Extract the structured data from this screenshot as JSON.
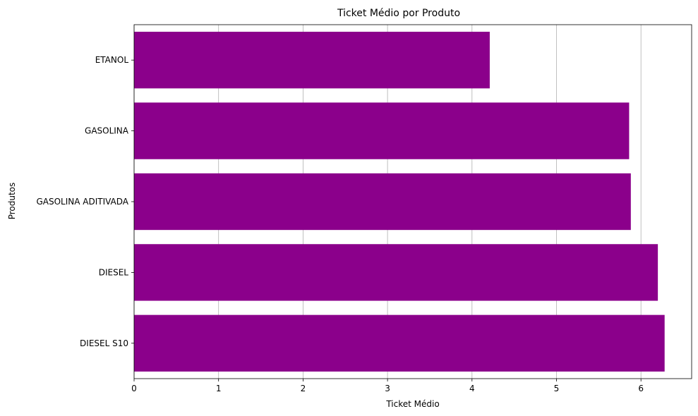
{
  "chart_data": {
    "type": "bar",
    "orientation": "horizontal",
    "title": "Ticket Médio por Produto",
    "xlabel": "Ticket Médio",
    "ylabel": "Produtos",
    "categories": [
      "DIESEL S10",
      "DIESEL",
      "GASOLINA ADITIVADA",
      "GASOLINA",
      "ETANOL"
    ],
    "values": [
      6.28,
      6.2,
      5.88,
      5.86,
      4.21
    ],
    "xlim": [
      0,
      6.6
    ],
    "xticks": [
      "0",
      "1",
      "2",
      "3",
      "4",
      "5",
      "6"
    ],
    "grid": "x",
    "bar_color": "#8b008b"
  }
}
